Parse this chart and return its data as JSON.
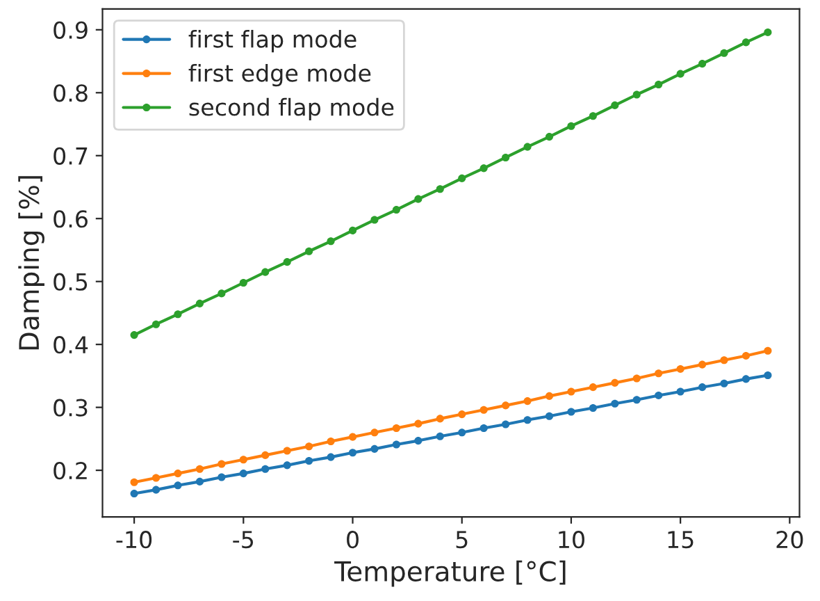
{
  "chart_data": {
    "type": "line",
    "xlabel": "Temperature [°C]",
    "ylabel": "Damping [%]",
    "x": [
      -10,
      -9,
      -8,
      -7,
      -6,
      -5,
      -4,
      -3,
      -2,
      -1,
      0,
      1,
      2,
      3,
      4,
      5,
      6,
      7,
      8,
      9,
      10,
      11,
      12,
      13,
      14,
      15,
      16,
      17,
      18,
      19
    ],
    "series": [
      {
        "name": "first flap mode",
        "color": "#1f77b4",
        "values": [
          0.163,
          0.169,
          0.176,
          0.182,
          0.189,
          0.195,
          0.202,
          0.208,
          0.215,
          0.221,
          0.228,
          0.234,
          0.241,
          0.247,
          0.254,
          0.26,
          0.267,
          0.273,
          0.28,
          0.286,
          0.293,
          0.299,
          0.306,
          0.312,
          0.319,
          0.325,
          0.332,
          0.338,
          0.345,
          0.351
        ]
      },
      {
        "name": "first edge mode",
        "color": "#ff7f0e",
        "values": [
          0.181,
          0.188,
          0.195,
          0.202,
          0.21,
          0.217,
          0.224,
          0.231,
          0.238,
          0.246,
          0.253,
          0.26,
          0.267,
          0.274,
          0.282,
          0.289,
          0.296,
          0.303,
          0.31,
          0.318,
          0.325,
          0.332,
          0.339,
          0.346,
          0.354,
          0.361,
          0.368,
          0.375,
          0.382,
          0.39
        ]
      },
      {
        "name": "second flap mode",
        "color": "#2ca02c",
        "values": [
          0.415,
          0.432,
          0.448,
          0.465,
          0.481,
          0.498,
          0.515,
          0.531,
          0.548,
          0.564,
          0.581,
          0.598,
          0.614,
          0.631,
          0.647,
          0.664,
          0.68,
          0.697,
          0.714,
          0.73,
          0.747,
          0.763,
          0.78,
          0.797,
          0.813,
          0.83,
          0.846,
          0.863,
          0.88,
          0.896
        ]
      }
    ],
    "xlim": [
      -11.45,
      20.45
    ],
    "ylim": [
      0.126,
      0.933
    ],
    "xticks": [
      -10,
      -5,
      0,
      5,
      10,
      15,
      20
    ],
    "yticks": [
      0.2,
      0.3,
      0.4,
      0.5,
      0.6,
      0.7,
      0.8,
      0.9
    ],
    "legend": "top left",
    "marker": "circle",
    "line_style": "solid",
    "grid": false
  }
}
